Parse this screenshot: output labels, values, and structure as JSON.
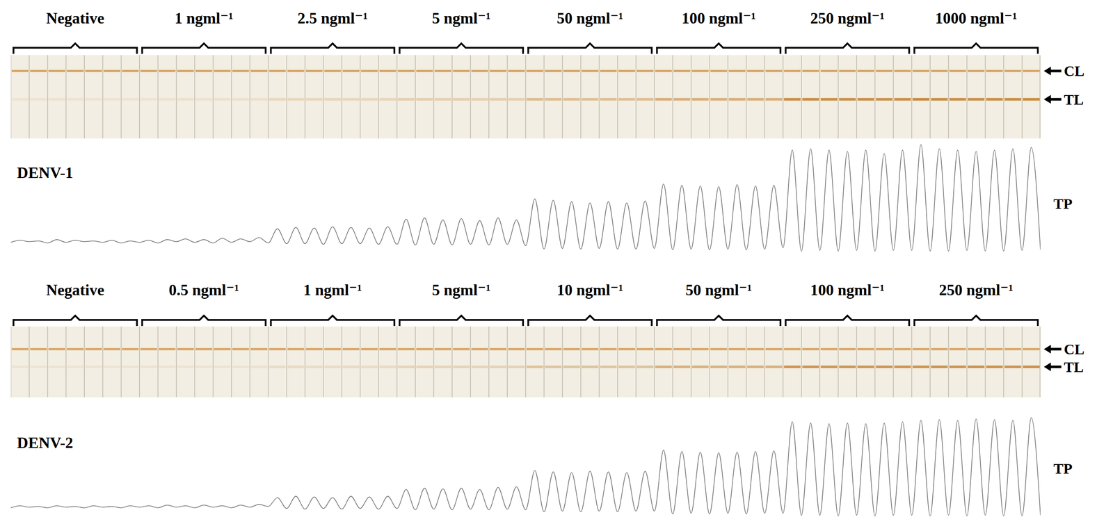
{
  "chart_data": [
    {
      "type": "line",
      "title": "DENV-1",
      "tick_labels": false,
      "color": "#777777",
      "xlim": [
        0,
        56
      ],
      "ylim": [
        0,
        160
      ],
      "categories": [
        "Negative",
        "1 ngml⁻¹",
        "2.5 ngml⁻¹",
        "5 ngml⁻¹",
        "50 ngml⁻¹",
        "100 ngml⁻¹",
        "250 ngml⁻¹",
        "1000 ngml⁻¹"
      ],
      "peaks": [
        [
          17,
          16,
          18,
          17,
          16,
          17,
          16
        ],
        [
          17,
          18,
          19,
          18,
          20,
          19,
          21
        ],
        [
          34,
          36,
          35,
          37,
          36,
          35,
          37
        ],
        [
          48,
          50,
          47,
          49,
          46,
          50,
          47
        ],
        [
          78,
          76,
          74,
          72,
          74,
          72,
          75
        ],
        [
          100,
          98,
          97,
          96,
          99,
          97,
          98
        ],
        [
          150,
          152,
          150,
          148,
          150,
          145,
          150
        ],
        [
          158,
          152,
          150,
          148,
          150,
          152,
          154
        ]
      ],
      "troughs": [
        14,
        15,
        13,
        14,
        15,
        14,
        13,
        14,
        13,
        15,
        14,
        13,
        14,
        15,
        13,
        12,
        12,
        11,
        12,
        12,
        11,
        11,
        10,
        11,
        10,
        11,
        10,
        11,
        9,
        4,
        5,
        4,
        5,
        4,
        4,
        5,
        3,
        4,
        3,
        4,
        3,
        4,
        6,
        1,
        2,
        1,
        2,
        1,
        2,
        2,
        1,
        1,
        2,
        1,
        1,
        2,
        3
      ],
      "strip_labels": [
        "CL",
        "TL"
      ],
      "profile_label": "TP"
    },
    {
      "type": "line",
      "title": "DENV-2",
      "tick_labels": false,
      "color": "#777777",
      "xlim": [
        0,
        56
      ],
      "ylim": [
        0,
        160
      ],
      "categories": [
        "Negative",
        "0.5 ngml⁻¹",
        "1 ngml⁻¹",
        "5 ngml⁻¹",
        "10 ngml⁻¹",
        "50 ngml⁻¹",
        "100 ngml⁻¹",
        "250 ngml⁻¹"
      ],
      "peaks": [
        [
          16,
          15,
          16,
          15,
          16,
          15,
          16
        ],
        [
          16,
          17,
          16,
          17,
          16,
          17,
          18
        ],
        [
          28,
          30,
          29,
          28,
          30,
          29,
          30
        ],
        [
          40,
          42,
          41,
          42,
          40,
          43,
          44
        ],
        [
          68,
          66,
          65,
          67,
          66,
          65,
          67
        ],
        [
          98,
          96,
          95,
          94,
          95,
          96,
          97
        ],
        [
          140,
          138,
          137,
          138,
          137,
          138,
          140
        ],
        [
          142,
          143,
          142,
          144,
          143,
          142,
          146
        ]
      ],
      "troughs": [
        13,
        14,
        13,
        14,
        13,
        14,
        13,
        14,
        13,
        14,
        13,
        14,
        13,
        14,
        15,
        12,
        11,
        12,
        11,
        12,
        11,
        12,
        10,
        11,
        10,
        11,
        10,
        11,
        10,
        7,
        8,
        7,
        8,
        7,
        8,
        8,
        4,
        5,
        4,
        5,
        4,
        5,
        5,
        2,
        2,
        1,
        2,
        1,
        2,
        2,
        1,
        2,
        1,
        2,
        1,
        1,
        2
      ],
      "strip_labels": [
        "CL",
        "TL"
      ],
      "profile_label": "TP"
    }
  ]
}
